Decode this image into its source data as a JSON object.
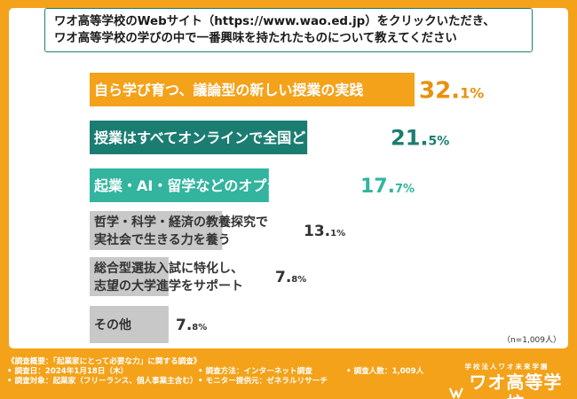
{
  "question": {
    "line1": "ワオ高等学校のWebサイト（https://www.wao.ed.jp）をクリックいただき、",
    "line2": "ワオ高等学校の学びの中で一番興味を持たれたものについて教えてください"
  },
  "colors": {
    "orange": "#f3a21a",
    "teal_dark": "#1b7d72",
    "teal_light": "#32b49e",
    "gray": "#c8c8c8",
    "pct_orange": "#e8910e",
    "pct_teal": "#1b7d72",
    "pct_teal_light": "#32b49e",
    "pct_gray": "#333333"
  },
  "chart_data": {
    "type": "bar",
    "orientation": "horizontal",
    "categories": [
      [
        "自ら学び育つ、議論型の新しい授業の実践"
      ],
      [
        "授業はすべてオンラインで全国どこからでも学べる"
      ],
      [
        "起業・AI・留学などのオプション講座がある"
      ],
      [
        "哲学・科学・経済の教養探究で",
        "実社会で生きる力を養う"
      ],
      [
        "総合型選抜入試に特化し、",
        "志望の大学進学をサポート"
      ],
      [
        "その他"
      ]
    ],
    "values": [
      32.1,
      21.5,
      17.7,
      13.1,
      7.8,
      7.8
    ],
    "value_int": [
      "32.",
      "21.",
      "17.",
      "13.",
      "7.",
      "7."
    ],
    "value_dec": [
      "1%",
      "5%",
      "7%",
      "1%",
      "8%",
      "8%"
    ],
    "xlim": [
      0,
      32.1
    ],
    "note": "（n=1,009人）"
  },
  "footer": {
    "summary": "《調査概要：「起業家にとって必要な力」に関する調査》",
    "date": "• 調査日：2024年1月18日（木）",
    "method": "• 調査方法：インターネット調査",
    "count": "• 調査人数：1,009人",
    "target": "• 調査対象：起業家（フリーランス、個人事業主含む）",
    "monitor": "• モニター提供元：ゼネラルリサーチ"
  },
  "brand": {
    "top": "学校法人ワオ未来学園",
    "main": "ワオ高等学校"
  }
}
